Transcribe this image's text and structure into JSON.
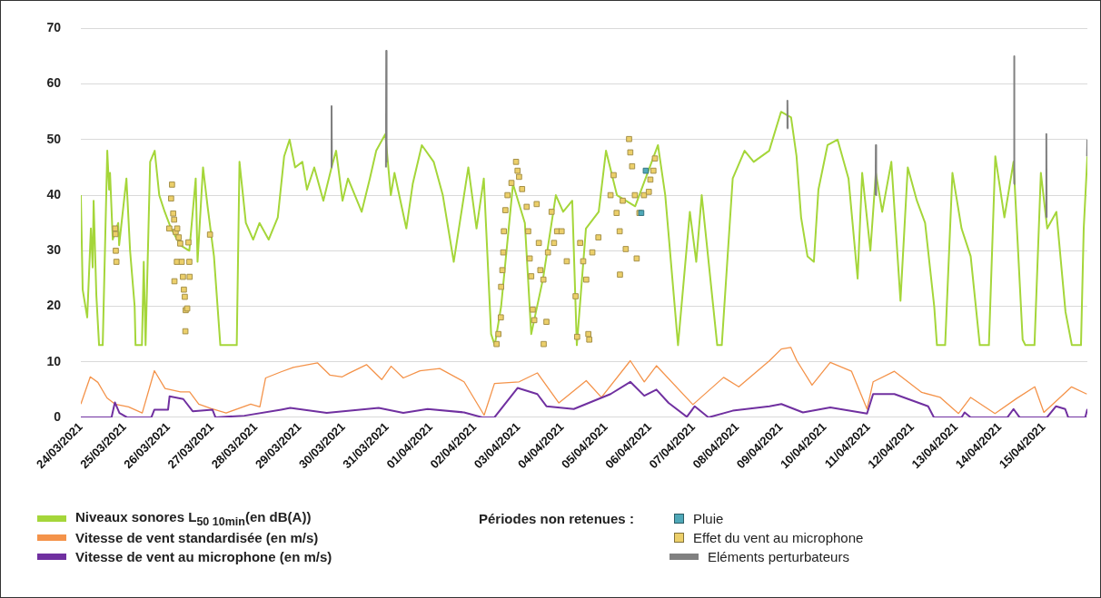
{
  "chart_data": {
    "type": "line",
    "legend_title": "Périodes non retenues :",
    "legend": "bottom",
    "grid": "y",
    "xlim": [
      "2021-03-24",
      "2021-04-16"
    ],
    "xticks": [
      {
        "value": "2021-03-24",
        "label": "24/03/2021"
      },
      {
        "value": "2021-03-25",
        "label": "25/03/2021"
      },
      {
        "value": "2021-03-26",
        "label": "26/03/2021"
      },
      {
        "value": "2021-03-27",
        "label": "27/03/2021"
      },
      {
        "value": "2021-03-28",
        "label": "28/03/2021"
      },
      {
        "value": "2021-03-29",
        "label": "29/03/2021"
      },
      {
        "value": "2021-03-30",
        "label": "30/03/2021"
      },
      {
        "value": "2021-03-31",
        "label": "31/03/2021"
      },
      {
        "value": "2021-04-01",
        "label": "01/04/2021"
      },
      {
        "value": "2021-04-02",
        "label": "02/04/2021"
      },
      {
        "value": "2021-04-03",
        "label": "03/04/2021"
      },
      {
        "value": "2021-04-04",
        "label": "04/04/2021"
      },
      {
        "value": "2021-04-05",
        "label": "05/04/2021"
      },
      {
        "value": "2021-04-06",
        "label": "06/04/2021"
      },
      {
        "value": "2021-04-07",
        "label": "07/04/2021"
      },
      {
        "value": "2021-04-08",
        "label": "08/04/2021"
      },
      {
        "value": "2021-04-09",
        "label": "09/04/2021"
      },
      {
        "value": "2021-04-10",
        "label": "10/04/2021"
      },
      {
        "value": "2021-04-11",
        "label": "11/04/2021"
      },
      {
        "value": "2021-04-12",
        "label": "12/04/2021"
      },
      {
        "value": "2021-04-13",
        "label": "13/04/2021"
      },
      {
        "value": "2021-04-14",
        "label": "14/04/2021"
      },
      {
        "value": "2021-04-15",
        "label": "15/04/2021"
      }
    ],
    "ylim": [
      0,
      70
    ],
    "yticks": [
      0,
      10,
      20,
      30,
      40,
      50,
      60,
      70
    ],
    "series": [
      {
        "name": "Niveaux sonores L$_{50 10min}$(en dB(A))",
        "color": "#a5d63a",
        "type": "line",
        "x": [
          "2021-03-24T00:00",
          "2021-03-24T01:00",
          "2021-03-24T03:30",
          "2021-03-24T05:30",
          "2021-03-24T06:30",
          "2021-03-24T07:00",
          "2021-03-24T08:30",
          "2021-03-24T10:00",
          "2021-03-24T12:00",
          "2021-03-24T14:30",
          "2021-03-24T15:30",
          "2021-03-24T16:00",
          "2021-03-24T17:30",
          "2021-03-24T20:30",
          "2021-03-24T21:00",
          "2021-03-25T01:00",
          "2021-03-25T03:00",
          "2021-03-25T05:30",
          "2021-03-25T06:00",
          "2021-03-25T09:30",
          "2021-03-25T10:30",
          "2021-03-25T11:30",
          "2021-03-25T14:00",
          "2021-03-25T16:30",
          "2021-03-25T19:00",
          "2021-03-25T22:00",
          "2021-03-26T01:30",
          "2021-03-26T06:30",
          "2021-03-26T11:30",
          "2021-03-26T15:00",
          "2021-03-26T16:00",
          "2021-03-26T19:00",
          "2021-03-26T21:30",
          "2021-03-27T01:00",
          "2021-03-27T04:30",
          "2021-03-27T13:30",
          "2021-03-27T15:00",
          "2021-03-27T18:30",
          "2021-03-27T22:30",
          "2021-03-28T02:00",
          "2021-03-28T07:00",
          "2021-03-28T12:00",
          "2021-03-28T15:30",
          "2021-03-28T18:30",
          "2021-03-28T21:30",
          "2021-03-29T01:30",
          "2021-03-29T04:00",
          "2021-03-29T08:00",
          "2021-03-29T13:00",
          "2021-03-29T17:30",
          "2021-03-29T20:00",
          "2021-03-29T23:30",
          "2021-03-30T02:30",
          "2021-03-30T10:00",
          "2021-03-30T14:30",
          "2021-03-30T18:00",
          "2021-03-30T23:00",
          "2021-03-31T02:00",
          "2021-03-31T04:00",
          "2021-03-31T10:30",
          "2021-03-31T14:00",
          "2021-03-31T19:00",
          "2021-04-01T01:30",
          "2021-04-01T06:30",
          "2021-04-01T12:30",
          "2021-04-01T20:30",
          "2021-04-02T01:00",
          "2021-04-02T05:00",
          "2021-04-02T09:00",
          "2021-04-02T11:00",
          "2021-04-02T14:30",
          "2021-04-02T21:00",
          "2021-04-03T03:30",
          "2021-04-03T07:00",
          "2021-04-03T13:30",
          "2021-04-03T20:30",
          "2021-04-04T00:30",
          "2021-04-04T05:30",
          "2021-04-04T08:00",
          "2021-04-04T13:00",
          "2021-04-04T20:00",
          "2021-04-05T00:00",
          "2021-04-05T06:00",
          "2021-04-05T16:00",
          "2021-04-06T04:30",
          "2021-04-06T08:30",
          "2021-04-06T15:30",
          "2021-04-06T22:00",
          "2021-04-07T01:30",
          "2021-04-07T04:30",
          "2021-04-07T13:00",
          "2021-04-07T15:30",
          "2021-04-07T21:30",
          "2021-04-08T04:00",
          "2021-04-08T09:00",
          "2021-04-08T17:30",
          "2021-04-09T00:00",
          "2021-04-09T05:30",
          "2021-04-09T08:30",
          "2021-04-09T11:00",
          "2021-04-09T14:30",
          "2021-04-09T18:00",
          "2021-04-09T20:30",
          "2021-04-10T01:30",
          "2021-04-10T07:00",
          "2021-04-10T13:00",
          "2021-04-10T18:00",
          "2021-04-10T20:30",
          "2021-04-11T01:00",
          "2021-04-11T04:00",
          "2021-04-11T07:30",
          "2021-04-11T12:30",
          "2021-04-11T17:30",
          "2021-04-11T21:30",
          "2021-04-12T02:30",
          "2021-04-12T07:00",
          "2021-04-12T12:00",
          "2021-04-12T13:30",
          "2021-04-12T18:00",
          "2021-04-12T22:00",
          "2021-04-13T03:00",
          "2021-04-13T08:00",
          "2021-04-13T13:00",
          "2021-04-13T18:00",
          "2021-04-13T21:30",
          "2021-04-14T02:30",
          "2021-04-14T07:30",
          "2021-04-14T12:30",
          "2021-04-14T14:00",
          "2021-04-14T19:00",
          "2021-04-14T22:30",
          "2021-04-15T02:00",
          "2021-04-15T07:00",
          "2021-04-15T12:00",
          "2021-04-15T15:30",
          "2021-04-15T20:30",
          "2021-04-15T22:00",
          "2021-04-16T00:00"
        ],
        "values": [
          40,
          23,
          18,
          34,
          27,
          39,
          22,
          13,
          13,
          48,
          41,
          44,
          32,
          35,
          31,
          43,
          30,
          20,
          13,
          13,
          28,
          13,
          46,
          48,
          40,
          37,
          34,
          31,
          30,
          43,
          28,
          45,
          38,
          29,
          13,
          13,
          46,
          35,
          32,
          35,
          32,
          36,
          47,
          50,
          45,
          46,
          41,
          45,
          39,
          45,
          48,
          39,
          43,
          37,
          43,
          48,
          51,
          40,
          44,
          34,
          42,
          49,
          46,
          40,
          28,
          45,
          34,
          43,
          15,
          13,
          20,
          42,
          35,
          15,
          25,
          40,
          37,
          39,
          13,
          34,
          37,
          48,
          40,
          38,
          49,
          40,
          13,
          37,
          28,
          40,
          13,
          13,
          43,
          48,
          46,
          48,
          55,
          54,
          47,
          36,
          29,
          28,
          41,
          49,
          50,
          43,
          25,
          44,
          30,
          44,
          37,
          46,
          21,
          45,
          39,
          35,
          20,
          13,
          13,
          44,
          34,
          29,
          13,
          13,
          47,
          36,
          46,
          14,
          13,
          13,
          44,
          34,
          37,
          19,
          13,
          13,
          34,
          47
        ]
      },
      {
        "name": "Vitesse de vent standardisée (en m/s)",
        "color": "#f4934a",
        "type": "line",
        "x": [
          "2021-03-24T00:00",
          "2021-03-24T05:10",
          "2021-03-24T09:20",
          "2021-03-24T14:20",
          "2021-03-24T18:40",
          "2021-03-25T02:10",
          "2021-03-25T09:40",
          "2021-03-25T16:20",
          "2021-03-25T22:10",
          "2021-03-26T06:40",
          "2021-03-26T11:40",
          "2021-03-26T16:40",
          "2021-03-26T23:20",
          "2021-03-27T07:40",
          "2021-03-27T21:10",
          "2021-03-28T02:10",
          "2021-03-28T05:20",
          "2021-03-28T13:50",
          "2021-03-28T20:30",
          "2021-03-29T09:50",
          "2021-03-29T16:40",
          "2021-03-29T23:20",
          "2021-03-30T02:40",
          "2021-03-30T12:40",
          "2021-03-30T21:00",
          "2021-03-31T02:10",
          "2021-03-31T08:50",
          "2021-03-31T18:00",
          "2021-04-01T04:50",
          "2021-04-01T18:10",
          "2021-04-02T05:10",
          "2021-04-02T10:50",
          "2021-04-03T00:20",
          "2021-04-03T10:20",
          "2021-04-03T22:10",
          "2021-04-04T13:10",
          "2021-04-04T21:30",
          "2021-04-05T13:20",
          "2021-04-05T21:00",
          "2021-04-06T03:40",
          "2021-04-06T23:40",
          "2021-04-07T16:30",
          "2021-04-08T00:50",
          "2021-04-08T17:40",
          "2021-04-09T00:10",
          "2021-04-09T05:20",
          "2021-04-09T08:40",
          "2021-04-09T17:00",
          "2021-04-10T03:00",
          "2021-04-10T14:40",
          "2021-04-10T23:10",
          "2021-04-11T02:30",
          "2021-04-11T14:10",
          "2021-04-12T05:10",
          "2021-04-12T15:20",
          "2021-04-13T01:20",
          "2021-04-13T08:00",
          "2021-04-13T21:20",
          "2021-04-14T09:10",
          "2021-04-14T19:10",
          "2021-04-15T00:10",
          "2021-04-15T15:20",
          "2021-04-15T23:40"
        ],
        "values": [
          2.4,
          7.3,
          6.3,
          3.5,
          2.4,
          1.9,
          0.8,
          8.4,
          5.2,
          4.6,
          4.6,
          2.4,
          1.6,
          0.8,
          2.4,
          1.9,
          7.1,
          8.2,
          9,
          9.8,
          7.6,
          7.3,
          7.9,
          9.5,
          6.8,
          9.2,
          7.1,
          8.4,
          8.8,
          6.4,
          0.4,
          6.1,
          6.4,
          8,
          2.6,
          6.6,
          3.6,
          10.2,
          6.4,
          9.3,
          2.3,
          7.2,
          5.5,
          10.2,
          12.3,
          12.6,
          10.2,
          5.8,
          9.9,
          8.3,
          1.5,
          6.4,
          8.3,
          4.5,
          3.6,
          0.7,
          3.6,
          0.7,
          3.4,
          5.5,
          0.9,
          5.5,
          4.2
        ]
      },
      {
        "name": "Vitesse de vent au microphone (en m/s)",
        "color": "#7030a0",
        "type": "line",
        "x": [
          "2021-03-24T00:00",
          "2021-03-24T16:50",
          "2021-03-24T18:40",
          "2021-03-24T21:10",
          "2021-03-25T01:20",
          "2021-03-25T14:40",
          "2021-03-25T16:20",
          "2021-03-25T23:50",
          "2021-03-26T00:40",
          "2021-03-26T08:10",
          "2021-03-26T13:20",
          "2021-03-27T00:10",
          "2021-03-27T01:50",
          "2021-03-27T17:40",
          "2021-03-28T13:50",
          "2021-03-28T18:50",
          "2021-03-29T14:50",
          "2021-03-30T19:20",
          "2021-03-31T08:50",
          "2021-03-31T22:10",
          "2021-04-01T18:10",
          "2021-04-02T04:10",
          "2021-04-02T10:50",
          "2021-04-02T23:30",
          "2021-04-03T10:20",
          "2021-04-03T15:20",
          "2021-04-04T06:20",
          "2021-04-05T02:30",
          "2021-04-05T13:20",
          "2021-04-05T21:00",
          "2021-04-06T03:40",
          "2021-04-06T10:20",
          "2021-04-06T20:20",
          "2021-04-07T00:40",
          "2021-04-07T08:10",
          "2021-04-07T21:30",
          "2021-04-08T17:40",
          "2021-04-09T00:10",
          "2021-04-09T12:00",
          "2021-04-10T03:00",
          "2021-04-10T23:10",
          "2021-04-11T02:30",
          "2021-04-11T14:10",
          "2021-04-12T08:40",
          "2021-04-12T11:50",
          "2021-04-13T03:00",
          "2021-04-13T04:40",
          "2021-04-13T08:00",
          "2021-04-14T04:10",
          "2021-04-14T07:30",
          "2021-04-14T10:50",
          "2021-04-15T01:50",
          "2021-04-15T06:50",
          "2021-04-15T11:50",
          "2021-04-15T13:30",
          "2021-04-15T22:50",
          "2021-04-16T00:00"
        ],
        "values": [
          0,
          0,
          2.7,
          0.8,
          0,
          0,
          1.4,
          1.4,
          3.8,
          3.3,
          1.1,
          1.4,
          0,
          0.3,
          1.4,
          1.7,
          0.8,
          1.7,
          0.8,
          1.5,
          0.9,
          0,
          0,
          5.3,
          4.2,
          2,
          1.5,
          4.2,
          6.4,
          3.9,
          5,
          2.6,
          0.1,
          2,
          0,
          1.2,
          2,
          2.4,
          0.9,
          1.8,
          0.7,
          4.2,
          4.2,
          2,
          0,
          0,
          0.9,
          0,
          0,
          1.5,
          0,
          0,
          2,
          1.5,
          0,
          0,
          1.5
        ]
      },
      {
        "name": "Pluie",
        "color": "#4fa8b8",
        "type": "scatter",
        "marker": "square",
        "x": [
          "2021-04-05T19:20",
          "2021-04-05T21:50"
        ],
        "values": [
          36.8,
          44.4
        ]
      },
      {
        "name": "Effet du vent au microphone",
        "color": "#eccf6a",
        "type": "scatter",
        "marker": "square",
        "x": [
          "2021-03-24T18:50",
          "2021-03-24T19:00",
          "2021-03-24T19:10",
          "2021-03-24T19:30",
          "2021-03-26T00:30",
          "2021-03-26T01:30",
          "2021-03-26T02:00",
          "2021-03-26T02:40",
          "2021-03-26T03:10",
          "2021-03-26T03:20",
          "2021-03-26T04:00",
          "2021-03-26T04:40",
          "2021-03-26T04:50",
          "2021-03-26T05:40",
          "2021-03-26T06:30",
          "2021-03-26T07:20",
          "2021-03-26T08:00",
          "2021-03-26T08:30",
          "2021-03-26T09:00",
          "2021-03-26T09:20",
          "2021-03-26T09:30",
          "2021-03-26T10:20",
          "2021-03-26T11:00",
          "2021-03-26T11:30",
          "2021-03-26T11:40",
          "2021-03-26T22:50",
          "2021-04-02T12:00",
          "2021-04-02T13:00",
          "2021-04-02T14:20",
          "2021-04-02T14:30",
          "2021-04-02T15:10",
          "2021-04-02T15:40",
          "2021-04-02T16:00",
          "2021-04-02T16:50",
          "2021-04-02T18:00",
          "2021-04-02T20:10",
          "2021-04-02T22:40",
          "2021-04-02T23:30",
          "2021-04-03T00:20",
          "2021-04-03T02:00",
          "2021-04-03T04:30",
          "2021-04-03T05:20",
          "2021-04-03T06:10",
          "2021-04-03T07:00",
          "2021-04-03T07:50",
          "2021-04-03T08:40",
          "2021-04-03T10:00",
          "2021-04-03T11:10",
          "2021-04-03T12:00",
          "2021-04-03T13:40",
          "2021-04-03T13:50",
          "2021-04-03T15:20",
          "2021-04-03T16:10",
          "2021-04-03T18:10",
          "2021-04-03T19:30",
          "2021-04-03T21:10",
          "2021-04-03T23:40",
          "2021-04-04T02:30",
          "2021-04-04T07:20",
          "2021-04-04T08:10",
          "2021-04-04T09:50",
          "2021-04-04T11:30",
          "2021-04-04T13:10",
          "2021-04-04T14:20",
          "2021-04-04T14:50",
          "2021-04-04T16:30",
          "2021-04-04T19:50",
          "2021-04-05T02:30",
          "2021-04-05T04:10",
          "2021-04-05T05:50",
          "2021-04-05T07:30",
          "2021-04-05T07:40",
          "2021-04-05T09:10",
          "2021-04-05T10:50",
          "2021-04-05T12:40",
          "2021-04-05T13:20",
          "2021-04-05T14:20",
          "2021-04-05T15:50",
          "2021-04-05T16:50",
          "2021-04-05T18:20",
          "2021-04-05T20:50",
          "2021-04-05T23:30",
          "2021-04-06T00:20",
          "2021-04-06T02:00",
          "2021-04-06T02:50"
        ],
        "values": [
          34,
          33,
          30,
          28,
          34,
          39.4,
          41.9,
          36.7,
          35.6,
          24.5,
          33.4,
          28,
          34,
          32.4,
          31.3,
          28,
          25.3,
          23,
          21.7,
          15.5,
          19.3,
          19.6,
          31.5,
          28,
          25.3,
          32.9,
          13.2,
          15,
          18,
          23.5,
          26.5,
          29.7,
          33.5,
          37.3,
          40,
          42.2,
          46,
          44.4,
          43.3,
          41.1,
          37.9,
          33.5,
          28.6,
          25.4,
          19.4,
          17.5,
          38.4,
          31.4,
          26.5,
          24.8,
          13.2,
          17.2,
          29.7,
          37,
          31.4,
          33.5,
          33.5,
          28.1,
          21.8,
          14.5,
          31.4,
          28.1,
          24.8,
          15,
          14,
          29.7,
          32.4,
          40,
          43.6,
          36.8,
          33.5,
          25.7,
          39,
          30.3,
          50.1,
          47.7,
          45.2,
          40,
          28.6,
          36.8,
          40,
          40.6,
          42.8,
          44.4,
          46.6
        ]
      },
      {
        "name": "Eléments perturbateurs",
        "color": "#808080",
        "type": "line",
        "x": [
          "2021-03-29T17:20",
          "2021-03-29T17:30",
          "2021-03-29T17:40",
          "2021-03-29T17:50",
          "2021-03-30T23:20",
          "2021-03-30T23:30",
          "2021-03-30T23:40",
          "2021-03-30T23:50",
          "2021-04-09T03:20",
          "2021-04-09T03:30",
          "2021-04-09T03:40",
          "2021-04-09T03:50",
          "2021-04-11T03:50",
          "2021-04-11T04:00",
          "2021-04-11T04:10",
          "2021-04-11T04:20",
          "2021-04-14T07:40",
          "2021-04-14T07:50",
          "2021-04-14T08:00",
          "2021-04-14T08:10",
          "2021-04-15T01:20",
          "2021-04-15T01:30",
          "2021-04-15T01:40",
          "2021-04-15T01:50",
          "2021-04-15T23:50",
          "2021-04-16T00:00"
        ],
        "values": [
          45,
          56,
          46,
          null,
          45,
          66,
          46,
          null,
          52,
          57,
          52,
          null,
          40,
          49,
          40,
          null,
          42,
          65,
          42,
          null,
          36,
          51,
          36,
          null,
          47,
          50
        ]
      }
    ]
  }
}
